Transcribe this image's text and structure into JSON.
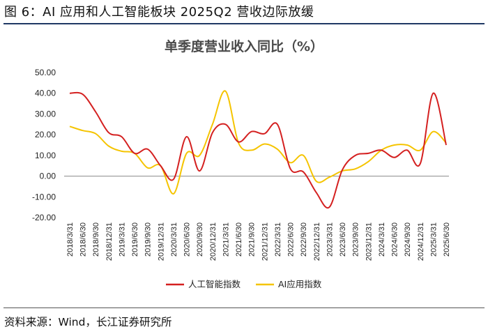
{
  "figure": {
    "caption": "图 6：AI 应用和人工智能板块 2025Q2 营收边际放缓",
    "source": "资料来源：Wind，长江证券研究所"
  },
  "colors": {
    "series_1": "#d42020",
    "series_2": "#f5c400",
    "caption_rule": "#1f3864"
  },
  "chart_data": {
    "type": "line",
    "title": "单季度营业收入同比（%）",
    "xlabel": "",
    "ylabel": "",
    "ylim": [
      -20,
      50
    ],
    "yticks": [
      "50.00",
      "40.00",
      "30.00",
      "20.00",
      "10.00",
      "0.00",
      "-10.00",
      "-20.00"
    ],
    "grid": false,
    "legend_position": "bottom",
    "x": [
      "2018/3/31",
      "2018/6/30",
      "2018/9/30",
      "2018/12/31",
      "2019/3/31",
      "2019/6/30",
      "2019/9/30",
      "2019/12/31",
      "2020/3/31",
      "2020/6/30",
      "2020/9/30",
      "2020/12/31",
      "2021/3/31",
      "2021/6/30",
      "2021/9/30",
      "2021/12/31",
      "2022/3/31",
      "2022/6/30",
      "2022/9/30",
      "2022/12/31",
      "2023/3/31",
      "2023/6/30",
      "2023/9/30",
      "2023/12/31",
      "2024/3/31",
      "2024/6/30",
      "2024/9/30",
      "2024/12/31",
      "2025/3/31",
      "2025/6/30"
    ],
    "series": [
      {
        "name": "人工智能指数",
        "values": [
          40,
          39.5,
          31,
          21,
          19,
          11,
          13,
          5,
          -1.5,
          19,
          2.5,
          21,
          25,
          16.5,
          21.5,
          20.5,
          25,
          3.5,
          2,
          -8,
          -15,
          3,
          10,
          11,
          12.5,
          9,
          12.5,
          6,
          40,
          15
        ]
      },
      {
        "name": "AI应用指数",
        "values": [
          24,
          22,
          20.5,
          14.5,
          12,
          11,
          4,
          5,
          -8.5,
          11,
          10,
          25,
          41,
          16,
          12.5,
          15.5,
          13,
          6.5,
          10,
          -2.5,
          -0.5,
          2.5,
          3.5,
          7,
          12.5,
          15,
          15,
          12.5,
          21.5,
          16
        ]
      }
    ]
  }
}
